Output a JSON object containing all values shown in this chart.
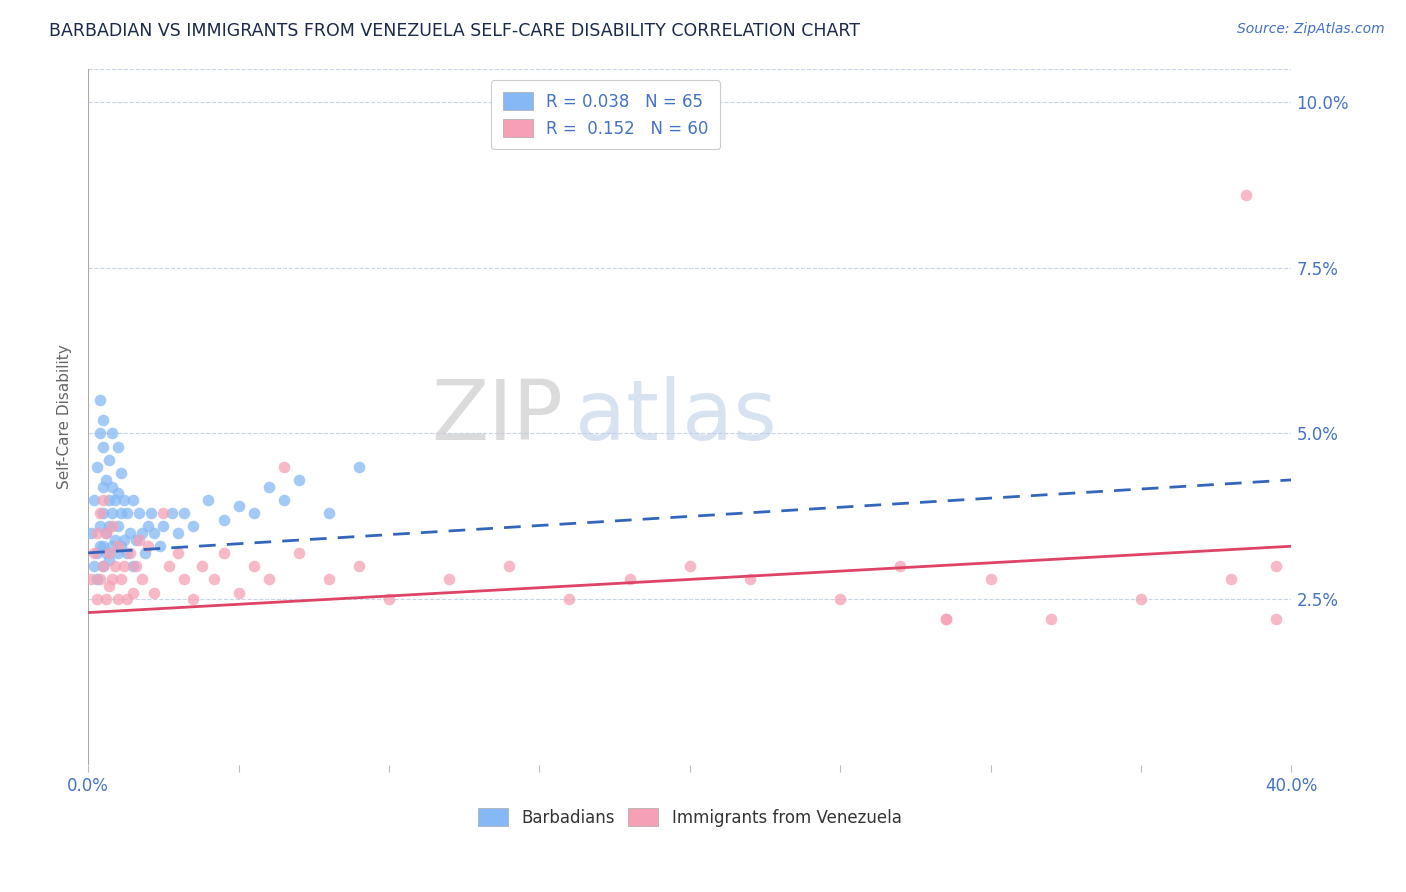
{
  "title": "BARBADIAN VS IMMIGRANTS FROM VENEZUELA SELF-CARE DISABILITY CORRELATION CHART",
  "source": "Source: ZipAtlas.com",
  "ylabel": "Self-Care Disability",
  "xlim": [
    0.0,
    0.4
  ],
  "ylim": [
    0.0,
    0.105
  ],
  "ytick_vals": [
    0.025,
    0.05,
    0.075,
    0.1
  ],
  "yticklabels": [
    "2.5%",
    "5.0%",
    "7.5%",
    "10.0%"
  ],
  "barbadian_color": "#85b8f5",
  "venezuela_color": "#f5a0b5",
  "barbadian_line_color": "#3366bb",
  "venezuela_line_color": "#dd4466",
  "barbadian_R": 0.038,
  "barbadian_N": 65,
  "venezuela_R": 0.152,
  "venezuela_N": 60,
  "background_color": "#ffffff",
  "grid_color": "#c8d4e8",
  "barbadian_trend_start_y": 0.032,
  "barbadian_trend_end_y": 0.043,
  "venezuela_trend_start_y": 0.023,
  "venezuela_trend_end_y": 0.033,
  "barb_x": [
    0.001,
    0.002,
    0.002,
    0.003,
    0.003,
    0.003,
    0.004,
    0.004,
    0.004,
    0.004,
    0.005,
    0.005,
    0.005,
    0.005,
    0.005,
    0.005,
    0.006,
    0.006,
    0.006,
    0.007,
    0.007,
    0.007,
    0.007,
    0.008,
    0.008,
    0.008,
    0.008,
    0.009,
    0.009,
    0.01,
    0.01,
    0.01,
    0.01,
    0.011,
    0.011,
    0.011,
    0.012,
    0.012,
    0.013,
    0.013,
    0.014,
    0.015,
    0.015,
    0.016,
    0.017,
    0.018,
    0.019,
    0.02,
    0.021,
    0.022,
    0.024,
    0.025,
    0.028,
    0.03,
    0.032,
    0.035,
    0.04,
    0.045,
    0.05,
    0.055,
    0.06,
    0.065,
    0.07,
    0.08,
    0.09
  ],
  "barb_y": [
    0.035,
    0.03,
    0.04,
    0.028,
    0.032,
    0.045,
    0.033,
    0.036,
    0.05,
    0.055,
    0.03,
    0.033,
    0.038,
    0.042,
    0.048,
    0.052,
    0.032,
    0.035,
    0.043,
    0.031,
    0.036,
    0.04,
    0.046,
    0.033,
    0.038,
    0.042,
    0.05,
    0.034,
    0.04,
    0.032,
    0.036,
    0.041,
    0.048,
    0.033,
    0.038,
    0.044,
    0.034,
    0.04,
    0.032,
    0.038,
    0.035,
    0.03,
    0.04,
    0.034,
    0.038,
    0.035,
    0.032,
    0.036,
    0.038,
    0.035,
    0.033,
    0.036,
    0.038,
    0.035,
    0.038,
    0.036,
    0.04,
    0.037,
    0.039,
    0.038,
    0.042,
    0.04,
    0.043,
    0.038,
    0.045
  ],
  "venz_x": [
    0.001,
    0.002,
    0.003,
    0.003,
    0.004,
    0.004,
    0.005,
    0.005,
    0.006,
    0.006,
    0.007,
    0.007,
    0.008,
    0.008,
    0.009,
    0.01,
    0.01,
    0.011,
    0.012,
    0.013,
    0.014,
    0.015,
    0.016,
    0.017,
    0.018,
    0.02,
    0.022,
    0.025,
    0.027,
    0.03,
    0.032,
    0.035,
    0.038,
    0.042,
    0.045,
    0.05,
    0.055,
    0.06,
    0.065,
    0.07,
    0.08,
    0.09,
    0.1,
    0.12,
    0.14,
    0.16,
    0.18,
    0.2,
    0.22,
    0.25,
    0.27,
    0.3,
    0.32,
    0.35,
    0.38,
    0.395,
    0.395,
    0.285,
    0.285,
    0.385
  ],
  "venz_y": [
    0.028,
    0.032,
    0.025,
    0.035,
    0.028,
    0.038,
    0.03,
    0.04,
    0.025,
    0.035,
    0.027,
    0.032,
    0.028,
    0.036,
    0.03,
    0.025,
    0.033,
    0.028,
    0.03,
    0.025,
    0.032,
    0.026,
    0.03,
    0.034,
    0.028,
    0.033,
    0.026,
    0.038,
    0.03,
    0.032,
    0.028,
    0.025,
    0.03,
    0.028,
    0.032,
    0.026,
    0.03,
    0.028,
    0.045,
    0.032,
    0.028,
    0.03,
    0.025,
    0.028,
    0.03,
    0.025,
    0.028,
    0.03,
    0.028,
    0.025,
    0.03,
    0.028,
    0.022,
    0.025,
    0.028,
    0.022,
    0.03,
    0.022,
    0.022,
    0.086
  ]
}
